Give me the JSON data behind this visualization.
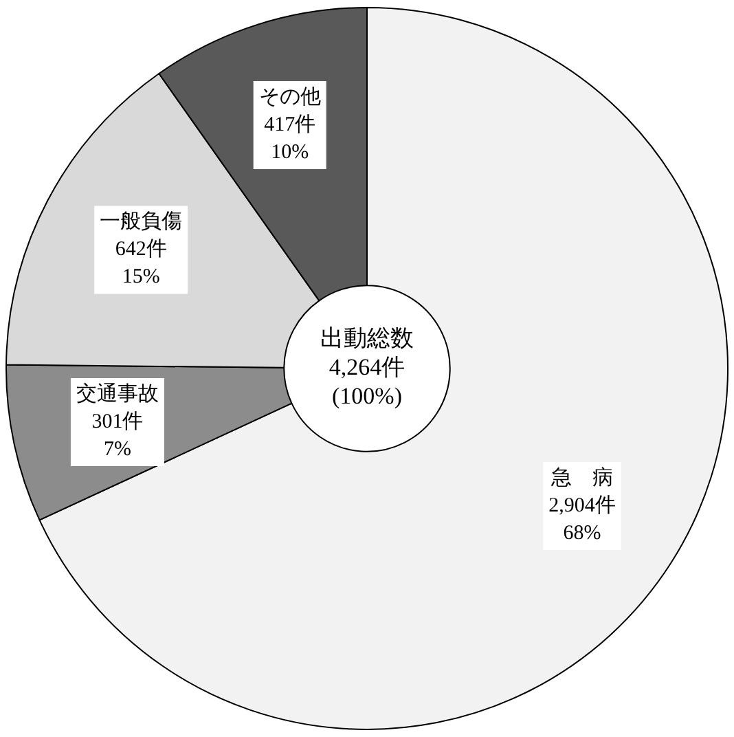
{
  "chart_data": {
    "type": "donut",
    "categories": [
      "急　病",
      "交通事故",
      "一般負傷",
      "その他"
    ],
    "values": [
      2904,
      301,
      642,
      417
    ],
    "value_labels": [
      "2,904件\n68%",
      "301件\n7%",
      "642件\n15%",
      "417件\n10%"
    ],
    "colors": [
      "#f2f2f2",
      "#8c8c8c",
      "#d9d9d9",
      "#595959"
    ],
    "annotations": [
      "出動総数\n4,264件\n(100%)"
    ],
    "legend": false
  }
}
